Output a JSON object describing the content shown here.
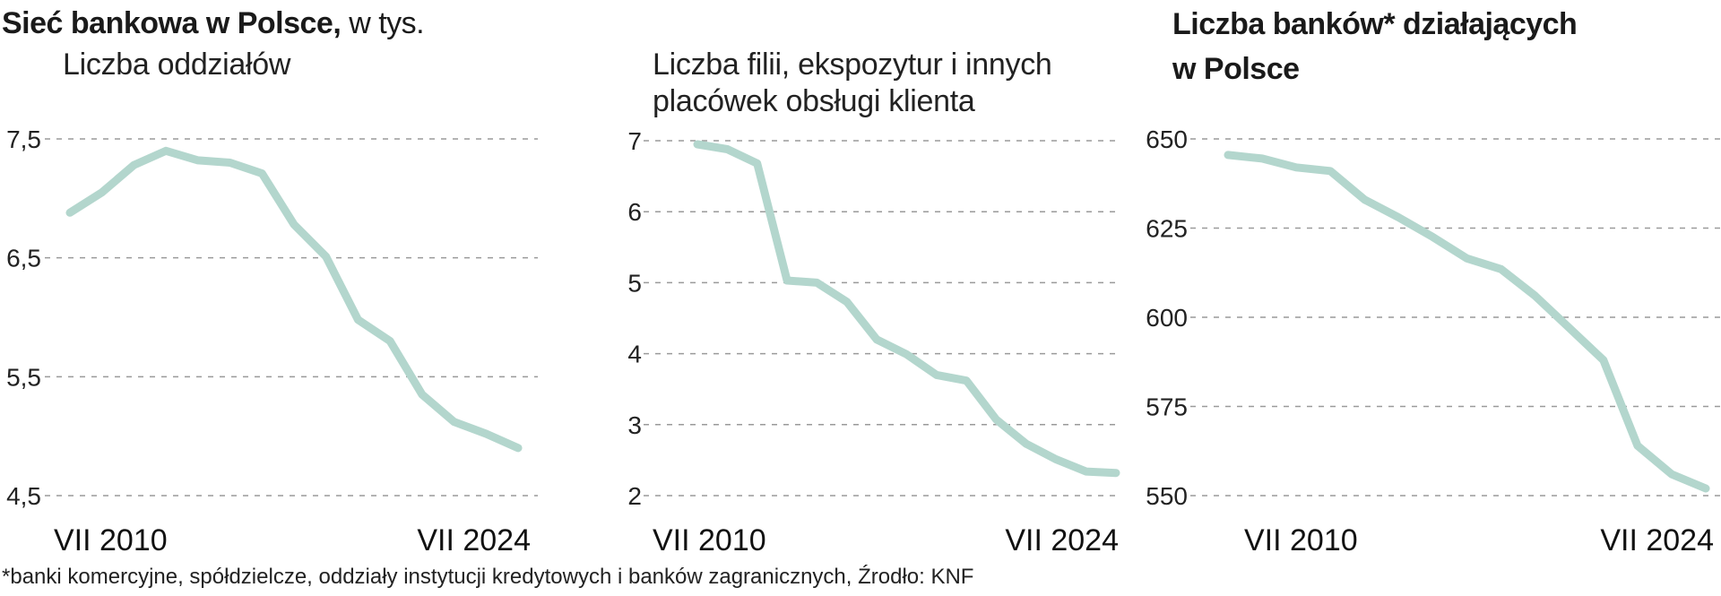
{
  "header": {
    "title_bold": "Sieć bankowa w Polsce,",
    "title_light": " w tys.",
    "bank_count_title_line1": "Liczba banków* działających",
    "bank_count_title_line2": "w Polsce"
  },
  "footnote": "*banki komercyjne, spółdzielcze, oddziały instytucji kredytowych i banków zagranicznych, Źrodło: KNF",
  "chart_data": [
    {
      "type": "line",
      "subtitle": [
        "Liczba oddziałów"
      ],
      "x_labels": [
        "VII 2010",
        "VII 2024"
      ],
      "yticks": [
        "7,5",
        "6,5",
        "5,5",
        "4,5"
      ],
      "ylim": [
        4.5,
        7.5
      ],
      "grid": true,
      "series": [
        {
          "values": [
            6.88,
            7.05,
            7.28,
            7.4,
            7.32,
            7.3,
            7.21,
            6.78,
            6.51,
            5.98,
            5.8,
            5.35,
            5.12,
            5.02,
            4.9
          ]
        }
      ]
    },
    {
      "type": "line",
      "subtitle": [
        "Liczba filii, ekspozytur i innych",
        "placówek obsługi klienta"
      ],
      "x_labels": [
        "VII 2010",
        "VII 2024"
      ],
      "yticks": [
        "7",
        "6",
        "5",
        "4",
        "3",
        "2"
      ],
      "ylim": [
        2,
        7
      ],
      "grid": true,
      "series": [
        {
          "values": [
            6.95,
            6.88,
            6.68,
            5.03,
            5.0,
            4.73,
            4.2,
            3.99,
            3.7,
            3.62,
            3.07,
            2.73,
            2.51,
            2.34,
            2.32
          ]
        }
      ]
    },
    {
      "type": "line",
      "x_labels": [
        "VII 2010",
        "VII 2024"
      ],
      "yticks": [
        "650",
        "625",
        "600",
        "575",
        "550"
      ],
      "ylim": [
        550,
        650
      ],
      "grid": true,
      "series": [
        {
          "values": [
            645.5,
            644.5,
            642,
            641,
            633,
            628,
            622.5,
            616.5,
            613.5,
            606,
            597,
            588,
            564,
            556,
            552
          ]
        }
      ]
    }
  ]
}
